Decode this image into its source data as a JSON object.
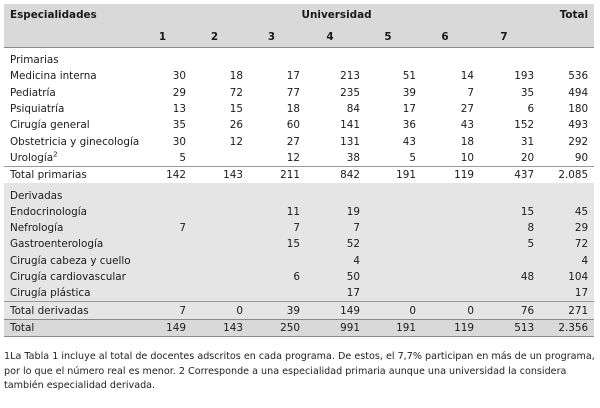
{
  "header": {
    "col_specialties": "Especialidades",
    "col_university": "Universidad",
    "col_total": "Total",
    "university_numbers": [
      "1",
      "2",
      "3",
      "4",
      "5",
      "6",
      "7"
    ]
  },
  "primarias": {
    "label": "Primarias",
    "rows": [
      {
        "name": "Medicina interna",
        "values": [
          "30",
          "18",
          "17",
          "213",
          "51",
          "14",
          "193"
        ],
        "total": "536"
      },
      {
        "name": "Pediatría",
        "values": [
          "29",
          "72",
          "77",
          "235",
          "39",
          "7",
          "35"
        ],
        "total": "494"
      },
      {
        "name": "Psiquiatría",
        "values": [
          "13",
          "15",
          "18",
          "84",
          "17",
          "27",
          "6"
        ],
        "total": "180"
      },
      {
        "name": "Cirugía general",
        "values": [
          "35",
          "26",
          "60",
          "141",
          "36",
          "43",
          "152"
        ],
        "total": "493"
      },
      {
        "name": "Obstetricia y ginecología",
        "values": [
          "30",
          "12",
          "27",
          "131",
          "43",
          "18",
          "31"
        ],
        "total": "292"
      },
      {
        "name": "Urología",
        "name_sup": "2",
        "values": [
          "5",
          "",
          "12",
          "38",
          "5",
          "10",
          "20"
        ],
        "total": "90"
      }
    ],
    "total_row": {
      "name": "Total primarias",
      "values": [
        "142",
        "143",
        "211",
        "842",
        "191",
        "119",
        "437"
      ],
      "total": "2.085"
    }
  },
  "derivadas": {
    "label": "Derivadas",
    "rows": [
      {
        "name": "Endocrinología",
        "values": [
          "",
          "",
          "11",
          "19",
          "",
          "",
          "15"
        ],
        "total": "45"
      },
      {
        "name": "Nefrología",
        "values": [
          "7",
          "",
          "7",
          "7",
          "",
          "",
          "8"
        ],
        "total": "29"
      },
      {
        "name": "Gastroenterología",
        "values": [
          "",
          "",
          "15",
          "52",
          "",
          "",
          "5"
        ],
        "total": "72"
      },
      {
        "name": "Cirugía cabeza y cuello",
        "values": [
          "",
          "",
          "",
          "4",
          "",
          "",
          ""
        ],
        "total": "4"
      },
      {
        "name": "Cirugía cardiovascular",
        "values": [
          "",
          "",
          "6",
          "50",
          "",
          "",
          "48"
        ],
        "total": "104"
      },
      {
        "name": "Cirugía plástica",
        "values": [
          "",
          "",
          "",
          "17",
          "",
          "",
          ""
        ],
        "total": "17"
      }
    ],
    "total_row": {
      "name": "Total derivadas",
      "values": [
        "7",
        "0",
        "39",
        "149",
        "0",
        "0",
        "76"
      ],
      "total": "271"
    }
  },
  "grand_total": {
    "name": "Total",
    "values": [
      "149",
      "143",
      "250",
      "991",
      "191",
      "119",
      "513"
    ],
    "total": "2.356"
  },
  "footnote": {
    "sup1": "1",
    "text1": "La Tabla 1 incluye al total de docentes adscritos en cada programa. De estos, el 7,7% participan en más de un programa, por lo que el número real es menor. ",
    "sup2": "2",
    "text2": " Corresponde a una especialidad primaria aunque una universidad la considera también especialidad derivada."
  },
  "colors": {
    "header_bg": "#d9d9d9",
    "derivadas_bg": "#e5e5e5",
    "text": "#1a1a1a"
  }
}
